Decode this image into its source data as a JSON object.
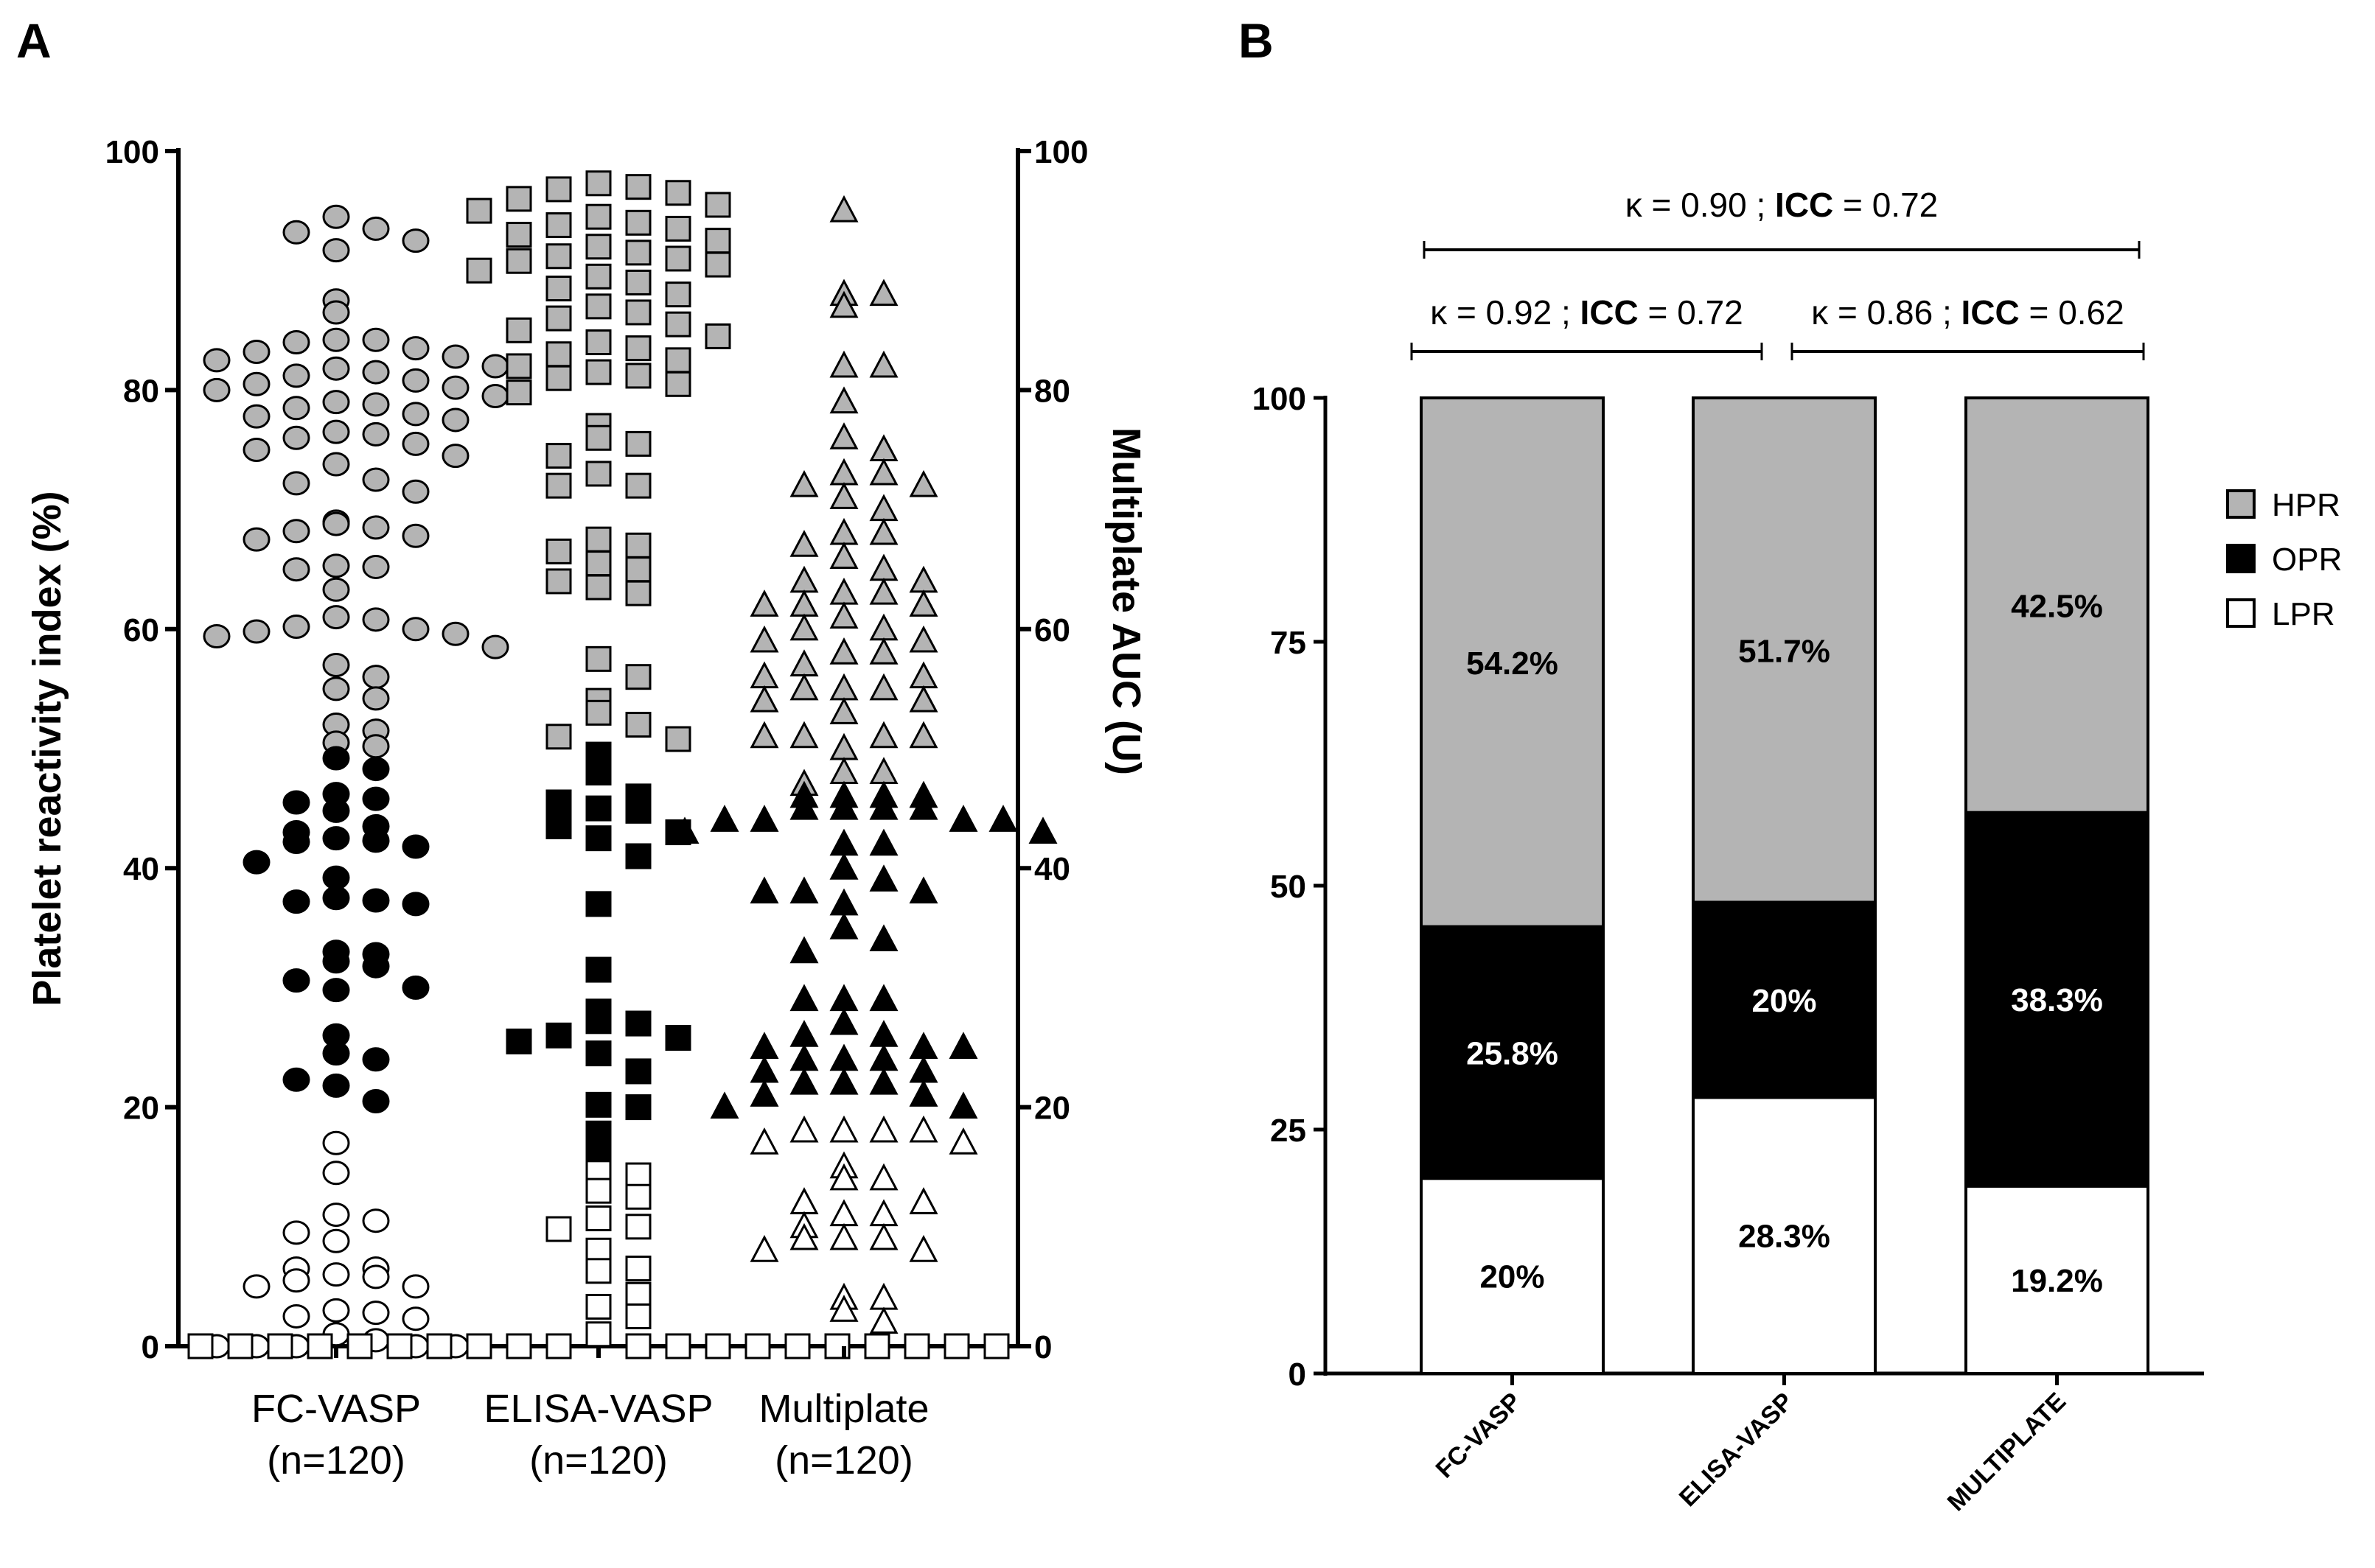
{
  "panels": {
    "a": "A",
    "b": "B"
  },
  "chart_data": [
    {
      "type": "scatter",
      "ylabel_left": "Platelet reactivity index (%)",
      "ylabel_right": "Multiplate AUC (U)",
      "ylim": [
        0,
        100
      ],
      "yticks": [
        0,
        20,
        40,
        60,
        80,
        100
      ],
      "categories": [
        {
          "name": "FC-VASP",
          "n": "(n=120)",
          "marker": "circle",
          "HPR": [
            94.5,
            93.5,
            93.2,
            92.5,
            91.7,
            87.5,
            86.5,
            84.2,
            84.2,
            84,
            83.5,
            83.2,
            82.8,
            82.5,
            82,
            81.8,
            81.5,
            81.2,
            80.8,
            80.5,
            80.2,
            80,
            79.5,
            79,
            78.8,
            78.5,
            78,
            77.8,
            77.5,
            76.5,
            76.3,
            76,
            75.5,
            75,
            74.5,
            73.8,
            72.5,
            72.2,
            71.5,
            69,
            68.8,
            68.5,
            68.2,
            67.8,
            67.5,
            65.3,
            65.2,
            65,
            63.3,
            61,
            60.8,
            60.2,
            60,
            59.8,
            59.6,
            59.4,
            58.5,
            57,
            56,
            55,
            54.2,
            52,
            51.5,
            50.5,
            50.2
          ],
          "OPR": [
            49.2,
            48.3,
            46.2,
            45.8,
            45.5,
            44.8,
            43.5,
            43,
            42.5,
            42.3,
            42.2,
            41.8,
            40.5,
            39.2,
            37.5,
            37.3,
            37.2,
            37,
            33,
            32.8,
            32.2,
            31.8,
            30.6,
            30,
            29.8,
            26,
            24.5,
            24,
            22.3,
            21.8,
            20.5
          ],
          "LPR": [
            17,
            14.5,
            11,
            10.5,
            9.5,
            8.8,
            6.5,
            6.5,
            6,
            5.8,
            5.5,
            5,
            5,
            3,
            2.8,
            2.5,
            2.3,
            1,
            0.5,
            0,
            0,
            0,
            0,
            0
          ]
        },
        {
          "name": "ELISA-VASP",
          "n": "(n=120)",
          "marker": "square",
          "HPR": [
            97.3,
            97,
            96.8,
            96.5,
            96,
            95.5,
            95,
            94.5,
            94,
            93.8,
            93.5,
            93,
            92.5,
            92,
            91.5,
            91.2,
            91,
            90.8,
            90.5,
            90,
            89.5,
            89,
            88.5,
            88,
            87,
            86.5,
            86,
            85.5,
            85,
            84.5,
            84,
            83.5,
            83,
            82.5,
            82,
            81.5,
            81.2,
            81,
            80.5,
            79.8,
            77,
            76,
            75.5,
            74.5,
            73,
            72,
            72,
            67.5,
            67,
            66.5,
            65.5,
            65,
            64,
            63.5,
            63,
            57.5,
            56,
            54,
            53,
            52,
            51,
            50.8
          ],
          "OPR": [
            49.5,
            48,
            46,
            45.5,
            45,
            44.8,
            43.5,
            43,
            42.5,
            41,
            37,
            31.5,
            28,
            27.2,
            27,
            26,
            25.8,
            25.5,
            24.5,
            23,
            20.2,
            20,
            17.8,
            16.2
          ],
          "LPR": [
            14.5,
            14.3,
            13,
            12.5,
            10.7,
            10,
            9.8,
            8,
            6.5,
            6.3,
            4.3,
            3.3,
            2.5,
            1,
            0,
            0,
            0,
            0,
            0,
            0,
            0,
            0,
            0,
            0,
            0,
            0,
            0,
            0,
            0,
            0,
            0,
            0,
            0,
            0
          ]
        },
        {
          "name": "Multiplate",
          "n": "(n=120)",
          "marker": "triangle",
          "HPR": [
            95,
            88,
            88,
            87,
            82,
            82,
            79,
            76,
            75,
            73,
            73,
            72,
            72,
            71,
            70,
            68,
            68,
            67,
            66,
            65,
            64,
            64,
            63,
            63,
            62,
            62,
            62,
            61,
            60,
            60,
            59,
            59,
            58,
            58,
            57,
            56,
            56,
            55,
            55,
            55,
            54,
            54,
            53,
            51,
            51,
            51,
            51,
            50,
            48,
            48,
            47
          ],
          "OPR": [
            46,
            46,
            46,
            46,
            45,
            45,
            45,
            45,
            44,
            44,
            44,
            44,
            43,
            43,
            42,
            42,
            40,
            39,
            38,
            38,
            38,
            37,
            35,
            34,
            33,
            29,
            29,
            29,
            27,
            26,
            26,
            25,
            25,
            25,
            24,
            24,
            24,
            23,
            23,
            22,
            22,
            22,
            21,
            21,
            20,
            20
          ],
          "LPR": [
            18,
            18,
            18,
            18,
            17,
            17,
            15,
            14,
            14,
            12,
            12,
            11,
            11,
            10,
            9,
            9,
            9,
            8,
            8,
            4,
            4,
            3,
            2
          ]
        }
      ],
      "legend_classes": {
        "HPR": "#b4b4b4",
        "OPR": "#000000",
        "LPR": "#ffffff"
      }
    },
    {
      "type": "bar",
      "stacked": true,
      "categories": [
        "FC-VASP",
        "ELISA-VASP",
        "MULTIPLATE"
      ],
      "ylim": [
        0,
        100
      ],
      "yticks": [
        0,
        25,
        50,
        75,
        100
      ],
      "series": [
        {
          "name": "LPR",
          "color": "#ffffff",
          "values": [
            20,
            28.3,
            19.2
          ],
          "labels": [
            "20%",
            "28.3%",
            "19.2%"
          ]
        },
        {
          "name": "OPR",
          "color": "#000000",
          "values": [
            25.8,
            20,
            38.3
          ],
          "labels": [
            "25.8%",
            "20%",
            "38.3%"
          ]
        },
        {
          "name": "HPR",
          "color": "#b4b4b4",
          "values": [
            54.2,
            51.7,
            42.5
          ],
          "labels": [
            "54.2%",
            "51.7%",
            "42.5%"
          ]
        }
      ],
      "legend": {
        "placement": "right",
        "order": [
          "HPR",
          "OPR",
          "LPR"
        ]
      },
      "annotations": [
        {
          "from": 0,
          "to": 2,
          "kappa": "κ = 0.90 ; ",
          "icc_label": "ICC",
          "icc": " = 0.72"
        },
        {
          "from": 0,
          "to": 1,
          "kappa": "κ = 0.92 ; ",
          "icc_label": "ICC",
          "icc": " = 0.72"
        },
        {
          "from": 1,
          "to": 2,
          "kappa": "κ = 0.86 ; ",
          "icc_label": "ICC",
          "icc": " = 0.62"
        }
      ]
    }
  ]
}
